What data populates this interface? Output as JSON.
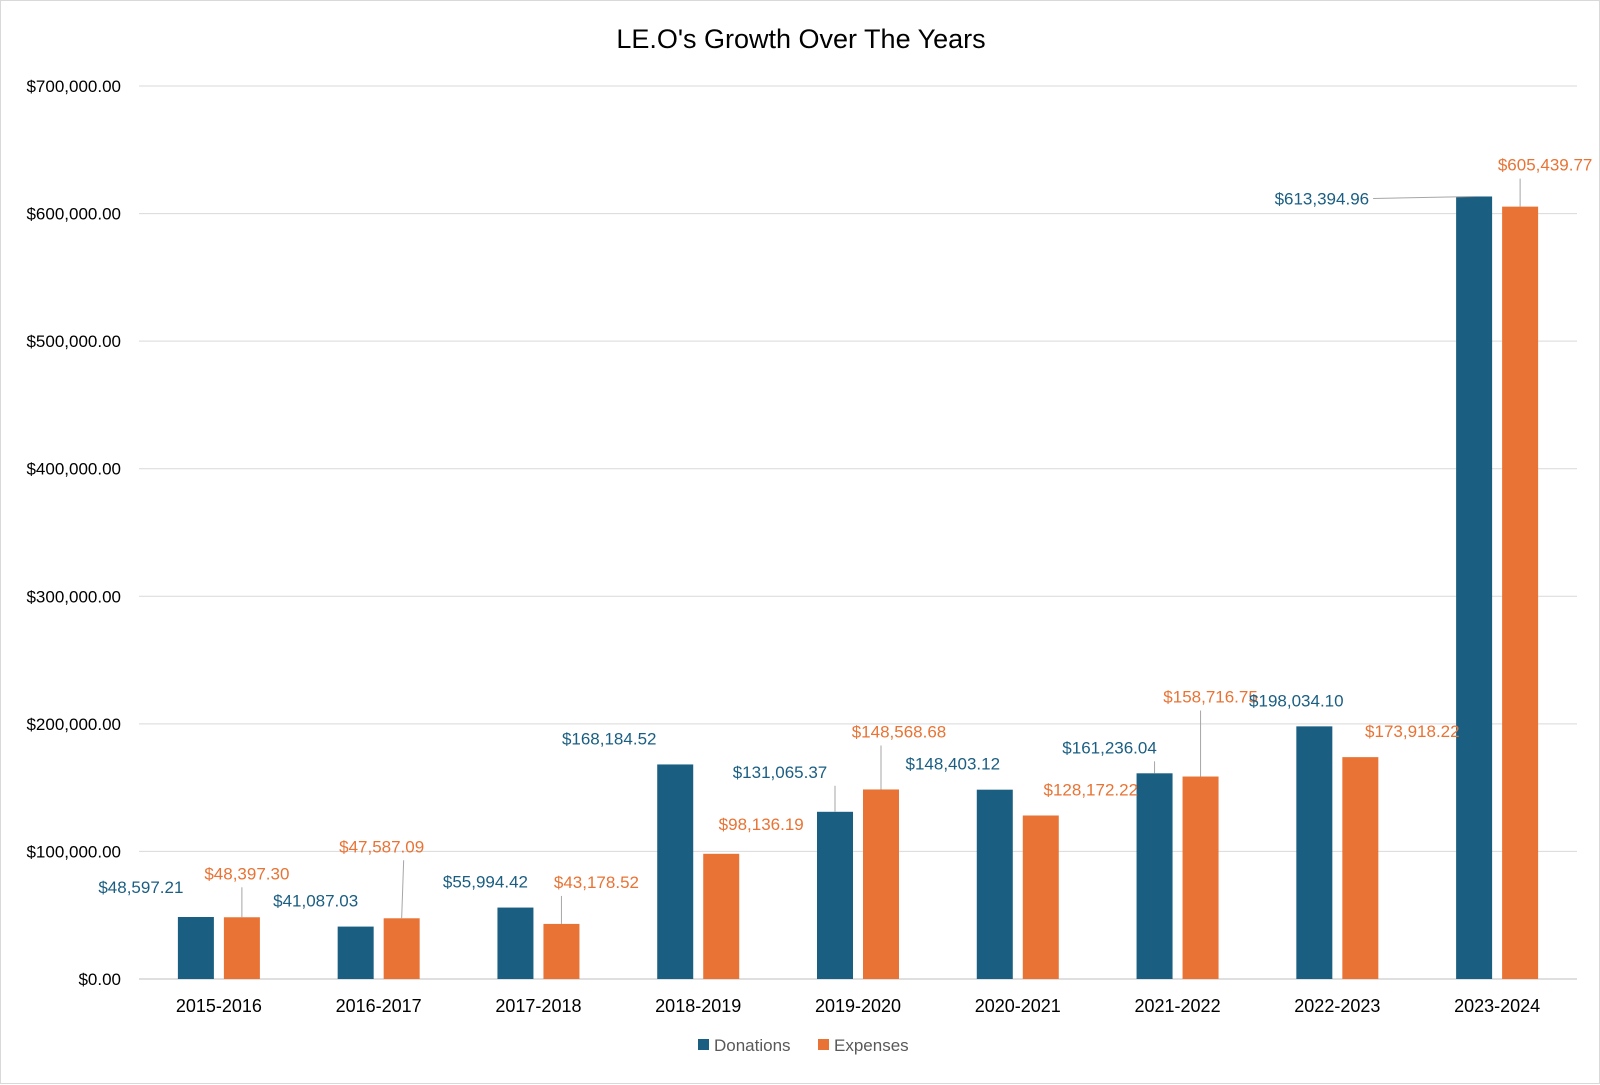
{
  "chart_data": {
    "type": "bar",
    "title": "LE.O's Growth Over The Years",
    "xlabel": "",
    "ylabel": "",
    "categories": [
      "2015-2016",
      "2016-2017",
      "2017-2018",
      "2018-2019",
      "2019-2020",
      "2020-2021",
      "2021-2022",
      "2022-2023",
      "2023-2024"
    ],
    "series": [
      {
        "name": "Donations",
        "color": "#1a5e82",
        "values": [
          48597.21,
          41087.03,
          55994.42,
          168184.52,
          131065.37,
          148403.12,
          161236.04,
          198034.1,
          613394.96
        ],
        "labels": [
          "$48,597.21",
          "$41,087.03",
          "$55,994.42",
          "$168,184.52",
          "$131,065.37",
          "$148,403.12",
          "$161,236.04",
          "$198,034.10",
          "$613,394.96"
        ]
      },
      {
        "name": "Expenses",
        "color": "#e87334",
        "values": [
          48397.3,
          47587.09,
          43178.52,
          98136.19,
          148568.68,
          128172.22,
          158716.75,
          173918.22,
          605439.77
        ],
        "labels": [
          "$48,397.30",
          "$47,587.09",
          "$43,178.52",
          "$98,136.19",
          "$148,568.68",
          "$128,172.22",
          "$158,716.75",
          "$173,918.22",
          "$605,439.77"
        ]
      }
    ],
    "ylim": [
      0,
      700000
    ],
    "yticks": [
      0,
      100000,
      200000,
      300000,
      400000,
      500000,
      600000,
      700000
    ],
    "ytick_labels": [
      "$0.00",
      "$100,000.00",
      "$200,000.00",
      "$300,000.00",
      "$400,000.00",
      "$500,000.00",
      "$600,000.00",
      "$700,000.00"
    ],
    "grid": true,
    "legend": "bottom"
  }
}
